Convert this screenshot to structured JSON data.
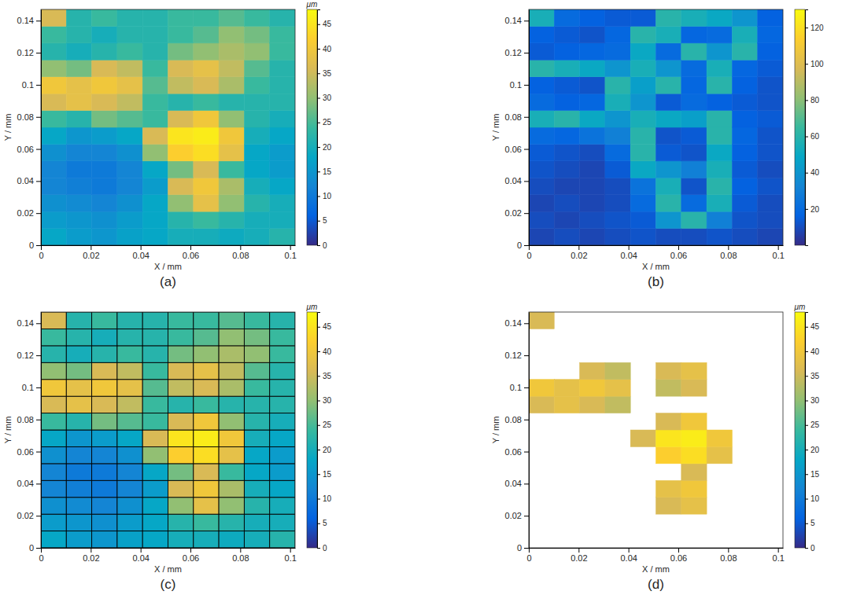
{
  "chart_data": [
    {
      "type": "heatmap",
      "title": "(a)",
      "xlabel": "X / mm",
      "ylabel": "Y / mm",
      "xlim": [
        0,
        0.102
      ],
      "ylim": [
        0,
        0.147
      ],
      "xticks": [
        0,
        0.02,
        0.04,
        0.06,
        0.08,
        0.1
      ],
      "yticks": [
        0,
        0.02,
        0.04,
        0.06,
        0.08,
        0.1,
        0.12,
        0.14
      ],
      "grid": false,
      "x_edges": [
        0,
        0.0102,
        0.0204,
        0.0306,
        0.0408,
        0.051,
        0.0612,
        0.0714,
        0.0816,
        0.0918,
        0.102
      ],
      "y_edges": [
        0,
        0.0105,
        0.021,
        0.0315,
        0.042,
        0.0525,
        0.063,
        0.0735,
        0.084,
        0.0945,
        0.105,
        0.1155,
        0.126,
        0.1365,
        0.147
      ],
      "z": [
        [
          18,
          16,
          15,
          17,
          18,
          20,
          20,
          19,
          20,
          22
        ],
        [
          16,
          15,
          14,
          16,
          18,
          22,
          24,
          22,
          20,
          20
        ],
        [
          14,
          13,
          12,
          14,
          18,
          30,
          38,
          30,
          22,
          20
        ],
        [
          12,
          11,
          10,
          12,
          16,
          36,
          40,
          32,
          20,
          18
        ],
        [
          12,
          10,
          10,
          12,
          18,
          28,
          36,
          24,
          18,
          16
        ],
        [
          14,
          12,
          12,
          14,
          30,
          42,
          44,
          38,
          18,
          16
        ],
        [
          18,
          15,
          16,
          18,
          36,
          45,
          46,
          40,
          20,
          18
        ],
        [
          24,
          22,
          28,
          26,
          24,
          36,
          40,
          30,
          22,
          20
        ],
        [
          36,
          38,
          36,
          34,
          24,
          22,
          24,
          22,
          22,
          22
        ],
        [
          40,
          38,
          40,
          38,
          26,
          34,
          36,
          32,
          24,
          22
        ],
        [
          30,
          28,
          36,
          34,
          24,
          36,
          38,
          34,
          26,
          22
        ],
        [
          22,
          20,
          22,
          24,
          22,
          28,
          30,
          32,
          30,
          24
        ],
        [
          24,
          22,
          20,
          22,
          22,
          24,
          26,
          30,
          28,
          24
        ],
        [
          36,
          22,
          24,
          22,
          22,
          24,
          24,
          26,
          24,
          22
        ]
      ],
      "colorbar": {
        "label": "μm",
        "range": [
          0,
          48
        ],
        "ticks": [
          0,
          5,
          10,
          15,
          20,
          25,
          30,
          35,
          40,
          45
        ]
      }
    },
    {
      "type": "heatmap",
      "title": "(b)",
      "xlabel": "X / mm",
      "ylabel": "Y / mm",
      "xlim": [
        0,
        0.102
      ],
      "ylim": [
        0,
        0.147
      ],
      "xticks": [
        0,
        0.02,
        0.04,
        0.06,
        0.08,
        0.1
      ],
      "yticks": [
        0,
        0.02,
        0.04,
        0.06,
        0.08,
        0.1,
        0.12,
        0.14
      ],
      "grid": false,
      "x_edges": [
        0,
        0.0102,
        0.0204,
        0.0306,
        0.0408,
        0.051,
        0.0612,
        0.0714,
        0.0816,
        0.0918,
        0.102
      ],
      "y_edges": [
        0,
        0.0105,
        0.021,
        0.0315,
        0.042,
        0.0525,
        0.063,
        0.0735,
        0.084,
        0.0945,
        0.105,
        0.1155,
        0.126,
        0.1365,
        0.147
      ],
      "z": [
        [
          8,
          10,
          8,
          10,
          12,
          10,
          10,
          12,
          10,
          8
        ],
        [
          10,
          8,
          10,
          12,
          14,
          40,
          60,
          30,
          12,
          10
        ],
        [
          8,
          10,
          8,
          10,
          20,
          60,
          20,
          55,
          14,
          10
        ],
        [
          10,
          8,
          8,
          10,
          24,
          55,
          12,
          60,
          16,
          12
        ],
        [
          12,
          10,
          8,
          14,
          50,
          40,
          30,
          55,
          14,
          10
        ],
        [
          14,
          12,
          10,
          20,
          60,
          14,
          12,
          50,
          16,
          12
        ],
        [
          20,
          18,
          24,
          30,
          60,
          12,
          14,
          60,
          18,
          12
        ],
        [
          55,
          60,
          50,
          40,
          55,
          50,
          45,
          60,
          16,
          14
        ],
        [
          20,
          16,
          18,
          55,
          40,
          14,
          20,
          16,
          14,
          12
        ],
        [
          16,
          14,
          12,
          60,
          45,
          60,
          18,
          60,
          16,
          12
        ],
        [
          60,
          55,
          50,
          40,
          55,
          40,
          20,
          55,
          18,
          14
        ],
        [
          14,
          16,
          18,
          20,
          50,
          20,
          60,
          40,
          60,
          16
        ],
        [
          16,
          14,
          12,
          18,
          60,
          55,
          18,
          20,
          55,
          18
        ],
        [
          55,
          20,
          16,
          14,
          14,
          60,
          55,
          50,
          40,
          16
        ]
      ],
      "colorbar": {
        "range": [
          0,
          130
        ],
        "ticks": [
          20,
          40,
          60,
          80,
          100,
          120
        ]
      }
    },
    {
      "type": "heatmap",
      "title": "(c)",
      "xlabel": "X / mm",
      "ylabel": "Y / mm",
      "xlim": [
        0,
        0.102
      ],
      "ylim": [
        0,
        0.147
      ],
      "xticks": [
        0,
        0.02,
        0.04,
        0.06,
        0.08,
        0.1
      ],
      "yticks": [
        0,
        0.02,
        0.04,
        0.06,
        0.08,
        0.1,
        0.12,
        0.14
      ],
      "grid": true,
      "x_edges": [
        0,
        0.0102,
        0.0204,
        0.0306,
        0.0408,
        0.051,
        0.0612,
        0.0714,
        0.0816,
        0.0918,
        0.102
      ],
      "y_edges": [
        0,
        0.0105,
        0.021,
        0.0315,
        0.042,
        0.0525,
        0.063,
        0.0735,
        0.084,
        0.0945,
        0.105,
        0.1155,
        0.126,
        0.1365,
        0.147
      ],
      "z": [
        [
          18,
          16,
          15,
          17,
          18,
          20,
          20,
          19,
          20,
          22
        ],
        [
          16,
          15,
          14,
          16,
          18,
          22,
          24,
          22,
          20,
          20
        ],
        [
          14,
          13,
          12,
          14,
          18,
          30,
          38,
          30,
          22,
          20
        ],
        [
          12,
          11,
          10,
          12,
          16,
          36,
          40,
          32,
          20,
          18
        ],
        [
          12,
          10,
          10,
          12,
          18,
          28,
          36,
          24,
          18,
          16
        ],
        [
          14,
          12,
          12,
          14,
          30,
          42,
          44,
          38,
          18,
          16
        ],
        [
          18,
          15,
          16,
          18,
          36,
          45,
          46,
          40,
          20,
          18
        ],
        [
          24,
          22,
          28,
          26,
          24,
          36,
          40,
          30,
          22,
          20
        ],
        [
          36,
          38,
          36,
          34,
          24,
          22,
          24,
          22,
          22,
          22
        ],
        [
          40,
          38,
          40,
          38,
          26,
          34,
          36,
          32,
          24,
          22
        ],
        [
          30,
          28,
          36,
          34,
          24,
          36,
          38,
          34,
          26,
          22
        ],
        [
          22,
          20,
          22,
          24,
          22,
          28,
          30,
          32,
          30,
          24
        ],
        [
          24,
          22,
          20,
          22,
          22,
          24,
          26,
          30,
          28,
          24
        ],
        [
          36,
          22,
          24,
          22,
          22,
          24,
          24,
          26,
          24,
          22
        ]
      ],
      "colorbar": {
        "label": "μm",
        "range": [
          0,
          48
        ],
        "ticks": [
          0,
          5,
          10,
          15,
          20,
          25,
          30,
          35,
          40,
          45
        ]
      }
    },
    {
      "type": "heatmap",
      "title": "(d)",
      "xlabel": "X / mm",
      "ylabel": "Y / mm",
      "xlim": [
        0,
        0.102
      ],
      "ylim": [
        0,
        0.147
      ],
      "xticks": [
        0,
        0.02,
        0.04,
        0.06,
        0.08,
        0.1
      ],
      "yticks": [
        0,
        0.02,
        0.04,
        0.06,
        0.08,
        0.1,
        0.12,
        0.14
      ],
      "grid": false,
      "x_edges": [
        0,
        0.0102,
        0.0204,
        0.0306,
        0.0408,
        0.051,
        0.0612,
        0.0714,
        0.0816,
        0.0918,
        0.102
      ],
      "y_edges": [
        0,
        0.0105,
        0.021,
        0.0315,
        0.042,
        0.0525,
        0.063,
        0.0735,
        0.084,
        0.0945,
        0.105,
        0.1155,
        0.126,
        0.1365,
        0.147
      ],
      "z": [
        [
          null,
          null,
          null,
          null,
          null,
          null,
          null,
          null,
          null,
          null
        ],
        [
          null,
          null,
          null,
          null,
          null,
          null,
          null,
          null,
          null,
          null
        ],
        [
          null,
          null,
          null,
          null,
          null,
          36,
          38,
          null,
          null,
          null
        ],
        [
          null,
          null,
          null,
          null,
          null,
          38,
          40,
          null,
          null,
          null
        ],
        [
          null,
          null,
          null,
          null,
          null,
          null,
          36,
          null,
          null,
          null
        ],
        [
          null,
          null,
          null,
          null,
          null,
          42,
          44,
          38,
          null,
          null
        ],
        [
          null,
          null,
          null,
          null,
          36,
          45,
          46,
          40,
          null,
          null
        ],
        [
          null,
          null,
          null,
          null,
          null,
          36,
          40,
          null,
          null,
          null
        ],
        [
          36,
          38,
          36,
          34,
          null,
          null,
          null,
          null,
          null,
          null
        ],
        [
          40,
          38,
          40,
          38,
          null,
          34,
          36,
          null,
          null,
          null
        ],
        [
          null,
          null,
          36,
          34,
          null,
          36,
          38,
          null,
          null,
          null
        ],
        [
          null,
          null,
          null,
          null,
          null,
          null,
          null,
          null,
          null,
          null
        ],
        [
          null,
          null,
          null,
          null,
          null,
          null,
          null,
          null,
          null,
          null
        ],
        [
          36,
          null,
          null,
          null,
          null,
          null,
          null,
          null,
          null,
          null
        ]
      ],
      "colorbar": {
        "label": "μm",
        "range": [
          0,
          48
        ],
        "ticks": [
          0,
          5,
          10,
          15,
          20,
          25,
          30,
          35,
          40,
          45
        ]
      }
    }
  ]
}
